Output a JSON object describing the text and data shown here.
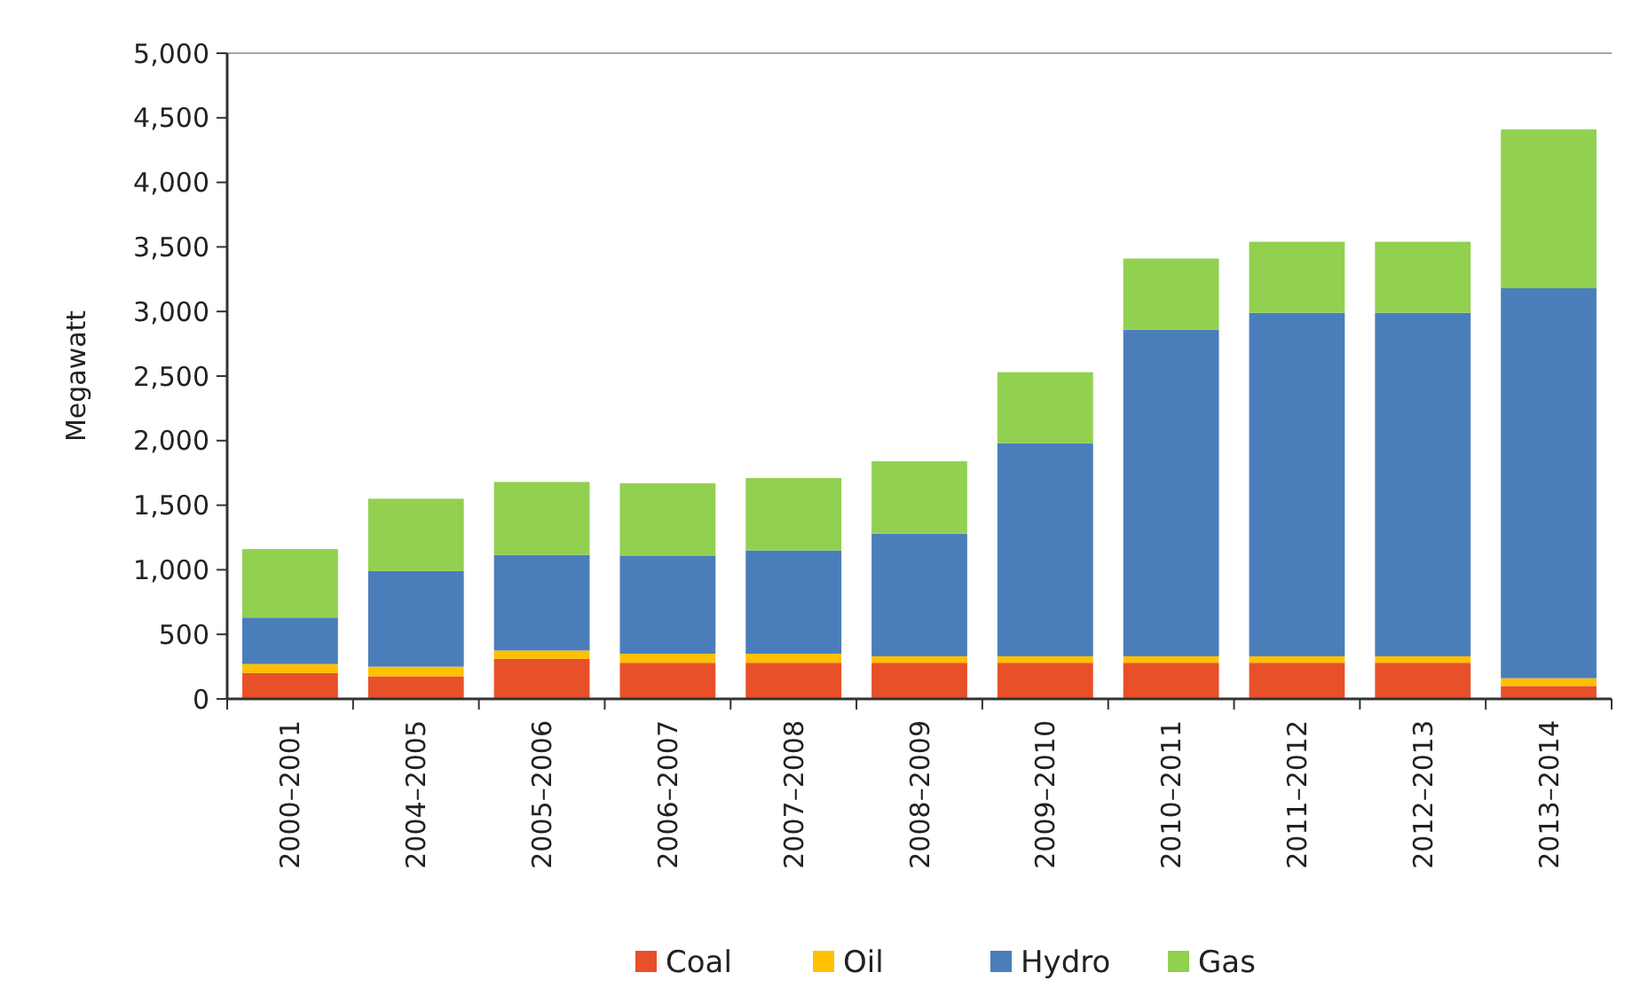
{
  "chart_data": {
    "type": "bar",
    "stacked": true,
    "ylabel": "Megawatt",
    "categories": [
      "2000–2001",
      "2004–2005",
      "2005–2006",
      "2006–2007",
      "2007–2008",
      "2008–2009",
      "2009–2010",
      "2010–2011",
      "2011–2012",
      "2012–2013",
      "2013–2014"
    ],
    "series": [
      {
        "name": "Coal",
        "color": "#e8502a",
        "values": [
          200,
          175,
          310,
          280,
          280,
          280,
          280,
          280,
          280,
          280,
          100
        ]
      },
      {
        "name": "Oil",
        "color": "#ffc000",
        "values": [
          70,
          75,
          65,
          70,
          70,
          50,
          50,
          50,
          50,
          50,
          60
        ]
      },
      {
        "name": "Hydro",
        "color": "#4a7ebb",
        "values": [
          360,
          740,
          740,
          760,
          800,
          950,
          1650,
          2530,
          2660,
          2660,
          3020
        ]
      },
      {
        "name": "Gas",
        "color": "#92d050",
        "values": [
          530,
          560,
          565,
          560,
          560,
          560,
          550,
          550,
          550,
          550,
          1230
        ]
      }
    ],
    "ylim": [
      0,
      5000
    ],
    "yticks": [
      {
        "value": 0,
        "label": "0"
      },
      {
        "value": 500,
        "label": "500"
      },
      {
        "value": 1000,
        "label": "1,000"
      },
      {
        "value": 1500,
        "label": "1,500"
      },
      {
        "value": 2000,
        "label": "2,000"
      },
      {
        "value": 2500,
        "label": "2,500"
      },
      {
        "value": 3000,
        "label": "3,000"
      },
      {
        "value": 3500,
        "label": "3,500"
      },
      {
        "value": 4000,
        "label": "4,000"
      },
      {
        "value": 4500,
        "label": "4,500"
      },
      {
        "value": 5000,
        "label": "5,000"
      }
    ],
    "grid": false,
    "legend": "bottom"
  }
}
